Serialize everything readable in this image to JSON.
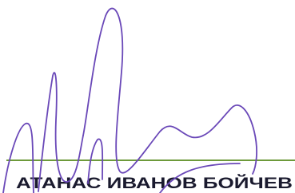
{
  "signature_block": {
    "name": "АТАНАС ИВАНОВ БОЙЧЕВ"
  }
}
